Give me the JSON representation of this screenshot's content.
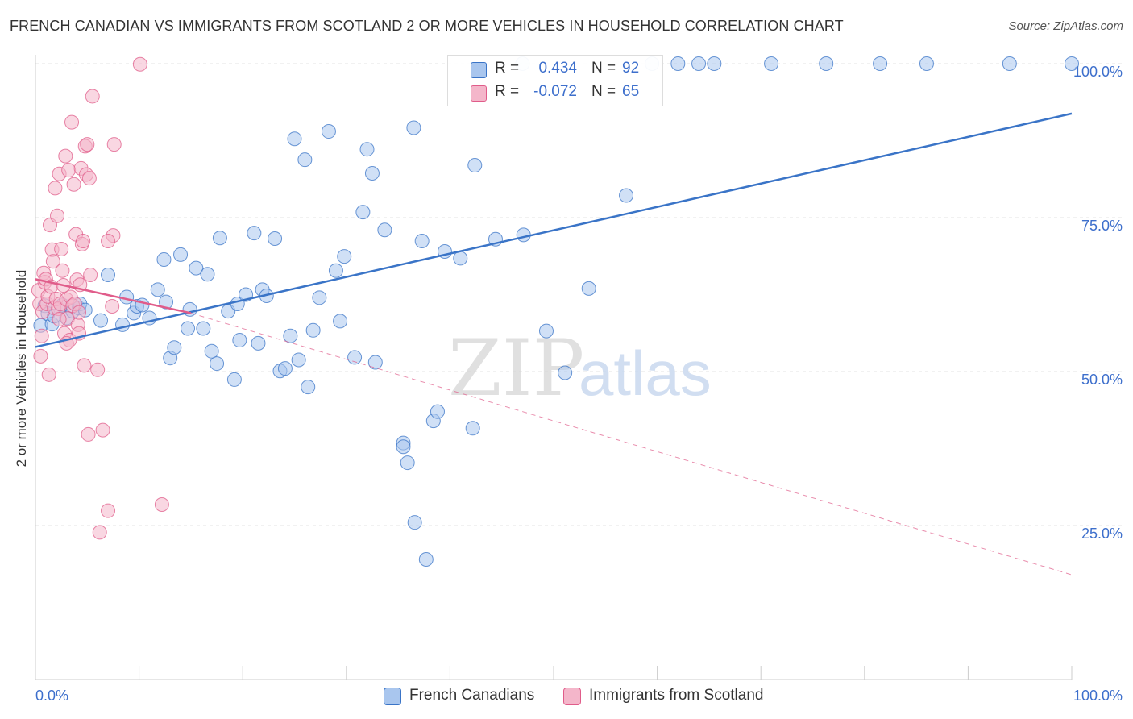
{
  "title": "FRENCH CANADIAN VS IMMIGRANTS FROM SCOTLAND 2 OR MORE VEHICLES IN HOUSEHOLD CORRELATION CHART",
  "source": "Source: ZipAtlas.com",
  "watermark": {
    "zip": "ZIP",
    "atlas": "atlas"
  },
  "colors": {
    "blue": "#3a74c7",
    "blue_fill": "#a9c6ee",
    "pink": "#e05c8a",
    "pink_fill": "#f4b6ca",
    "axis_label": "#3d6fcc",
    "grid": "#e3e3e3"
  },
  "legend": {
    "rows": [
      {
        "r_label": "R =",
        "r_value": "0.434",
        "n_label": "N =",
        "n_value": "92"
      },
      {
        "r_label": "R =",
        "r_value": "-0.072",
        "n_label": "N =",
        "n_value": "65"
      }
    ]
  },
  "bottom_legend": {
    "series_a": "French Canadians",
    "series_b": "Immigrants from Scotland"
  },
  "chart_data": {
    "type": "scatter",
    "title": "FRENCH CANADIAN VS IMMIGRANTS FROM SCOTLAND 2 OR MORE VEHICLES IN HOUSEHOLD CORRELATION CHART",
    "xlabel": "",
    "ylabel": "2 or more Vehicles in Household",
    "xlim": [
      0,
      100
    ],
    "ylim": [
      0,
      105
    ],
    "x_tick_labels": [
      "0.0%",
      "100.0%"
    ],
    "y_ticks": [
      25,
      50,
      75,
      100
    ],
    "y_tick_labels": [
      "25.0%",
      "50.0%",
      "75.0%",
      "100.0%"
    ],
    "grid": true,
    "series": [
      {
        "name": "French Canadians",
        "color": "#a9c6ee",
        "trend": {
          "x": [
            0,
            100
          ],
          "y": [
            54.0,
            91.9
          ]
        },
        "points": [
          [
            0.5,
            57.5
          ],
          [
            0.9,
            60.7
          ],
          [
            1.2,
            59.4
          ],
          [
            1.6,
            57.7
          ],
          [
            1.8,
            59.0
          ],
          [
            2.6,
            60.8
          ],
          [
            3.0,
            58.7
          ],
          [
            3.6,
            59.8
          ],
          [
            4.2,
            60.3
          ],
          [
            4.3,
            61.0
          ],
          [
            4.8,
            60.0
          ],
          [
            6.3,
            58.3
          ],
          [
            7.0,
            65.7
          ],
          [
            8.4,
            57.6
          ],
          [
            8.8,
            62.1
          ],
          [
            9.5,
            59.5
          ],
          [
            9.8,
            60.6
          ],
          [
            10.3,
            60.8
          ],
          [
            11.0,
            58.7
          ],
          [
            11.8,
            63.3
          ],
          [
            12.4,
            68.2
          ],
          [
            12.6,
            61.3
          ],
          [
            13.0,
            52.2
          ],
          [
            13.4,
            53.9
          ],
          [
            14.0,
            69.0
          ],
          [
            14.7,
            57.0
          ],
          [
            14.9,
            60.1
          ],
          [
            15.5,
            66.8
          ],
          [
            16.2,
            57.0
          ],
          [
            16.6,
            65.8
          ],
          [
            17.0,
            53.3
          ],
          [
            17.5,
            51.3
          ],
          [
            17.8,
            71.7
          ],
          [
            18.6,
            59.8
          ],
          [
            19.2,
            48.7
          ],
          [
            19.5,
            61.0
          ],
          [
            19.7,
            55.1
          ],
          [
            20.3,
            62.5
          ],
          [
            21.1,
            72.5
          ],
          [
            21.5,
            54.6
          ],
          [
            21.9,
            63.3
          ],
          [
            22.3,
            62.3
          ],
          [
            23.1,
            71.6
          ],
          [
            23.6,
            50.1
          ],
          [
            24.1,
            50.5
          ],
          [
            24.6,
            55.8
          ],
          [
            25.0,
            87.8
          ],
          [
            25.4,
            51.9
          ],
          [
            26.0,
            84.4
          ],
          [
            26.3,
            47.5
          ],
          [
            26.8,
            56.7
          ],
          [
            27.4,
            62.0
          ],
          [
            28.3,
            89.0
          ],
          [
            29.0,
            66.4
          ],
          [
            29.4,
            58.2
          ],
          [
            29.8,
            68.7
          ],
          [
            30.8,
            52.3
          ],
          [
            31.6,
            75.9
          ],
          [
            32.0,
            86.1
          ],
          [
            32.5,
            82.2
          ],
          [
            32.8,
            51.5
          ],
          [
            33.7,
            73.0
          ],
          [
            35.5,
            38.4
          ],
          [
            35.5,
            37.8
          ],
          [
            35.9,
            35.2
          ],
          [
            36.5,
            89.6
          ],
          [
            36.6,
            25.5
          ],
          [
            37.3,
            71.2
          ],
          [
            37.7,
            19.5
          ],
          [
            38.4,
            42.0
          ],
          [
            38.8,
            43.5
          ],
          [
            39.5,
            69.5
          ],
          [
            41.0,
            68.4
          ],
          [
            42.2,
            40.8
          ],
          [
            42.4,
            83.5
          ],
          [
            44.4,
            71.5
          ],
          [
            47.1,
            72.2
          ],
          [
            49.3,
            56.6
          ],
          [
            51.1,
            49.8
          ],
          [
            53.4,
            63.5
          ],
          [
            57.0,
            78.6
          ],
          [
            47.0,
            100.0
          ],
          [
            59.5,
            100.0
          ],
          [
            62.0,
            100.0
          ],
          [
            64.0,
            100.0
          ],
          [
            65.5,
            100.0
          ],
          [
            71.0,
            100.0
          ],
          [
            76.3,
            100.0
          ],
          [
            81.5,
            100.0
          ],
          [
            86.0,
            100.0
          ],
          [
            94.0,
            100.0
          ],
          [
            100.0,
            100.0
          ]
        ]
      },
      {
        "name": "Immigrants from Scotland",
        "color": "#f4b6ca",
        "trend": {
          "x": [
            0,
            15
          ],
          "y": [
            65.0,
            59.5
          ]
        },
        "trend_extended": {
          "x": [
            15,
            100
          ],
          "y": [
            59.5,
            17.0
          ]
        },
        "points": [
          [
            0.3,
            63.2
          ],
          [
            0.4,
            61.0
          ],
          [
            0.5,
            52.5
          ],
          [
            0.6,
            55.8
          ],
          [
            0.7,
            59.7
          ],
          [
            0.8,
            66.0
          ],
          [
            0.9,
            64.5
          ],
          [
            1.0,
            65.0
          ],
          [
            1.1,
            61.0
          ],
          [
            1.2,
            62.2
          ],
          [
            1.3,
            49.5
          ],
          [
            1.4,
            73.8
          ],
          [
            1.5,
            63.8
          ],
          [
            1.6,
            69.8
          ],
          [
            1.7,
            67.9
          ],
          [
            1.8,
            60.3
          ],
          [
            1.9,
            79.8
          ],
          [
            2.0,
            61.8
          ],
          [
            2.1,
            75.3
          ],
          [
            2.2,
            60.2
          ],
          [
            2.3,
            82.1
          ],
          [
            2.4,
            61.0
          ],
          [
            2.5,
            69.9
          ],
          [
            2.6,
            66.4
          ],
          [
            2.7,
            64.0
          ],
          [
            2.8,
            56.2
          ],
          [
            2.9,
            85.0
          ],
          [
            3.0,
            61.7
          ],
          [
            3.1,
            58.6
          ],
          [
            3.2,
            82.7
          ],
          [
            3.3,
            55.1
          ],
          [
            3.4,
            62.1
          ],
          [
            3.5,
            90.5
          ],
          [
            3.6,
            60.7
          ],
          [
            3.7,
            80.4
          ],
          [
            3.8,
            61.0
          ],
          [
            3.9,
            72.3
          ],
          [
            4.0,
            64.9
          ],
          [
            4.1,
            57.6
          ],
          [
            4.2,
            59.6
          ],
          [
            4.3,
            64.1
          ],
          [
            4.4,
            83.0
          ],
          [
            4.5,
            70.7
          ],
          [
            4.6,
            71.2
          ],
          [
            4.7,
            51.0
          ],
          [
            4.8,
            86.6
          ],
          [
            4.9,
            82.0
          ],
          [
            5.0,
            86.9
          ],
          [
            5.1,
            39.8
          ],
          [
            5.2,
            81.4
          ],
          [
            5.3,
            65.7
          ],
          [
            5.5,
            94.7
          ],
          [
            6.0,
            50.3
          ],
          [
            6.2,
            23.9
          ],
          [
            6.5,
            40.5
          ],
          [
            7.0,
            27.4
          ],
          [
            7.4,
            60.6
          ],
          [
            7.5,
            72.1
          ],
          [
            7.6,
            86.9
          ],
          [
            7.0,
            71.2
          ],
          [
            10.1,
            99.9
          ],
          [
            12.2,
            28.4
          ],
          [
            2.3,
            58.5
          ],
          [
            3.0,
            54.6
          ],
          [
            4.2,
            56.2
          ]
        ]
      }
    ]
  }
}
